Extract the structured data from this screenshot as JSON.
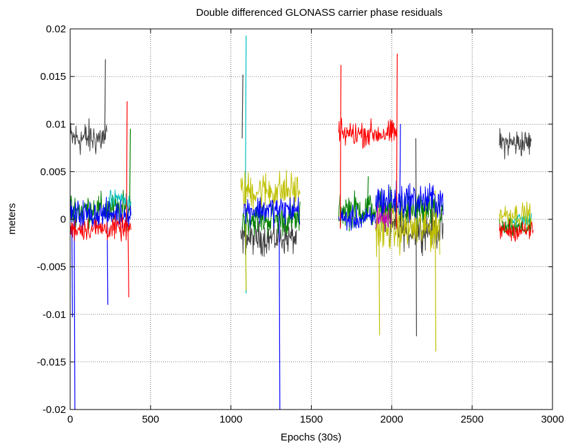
{
  "chart_data": {
    "type": "line",
    "title": "Double differenced GLONASS carrier phase residuals",
    "xlabel": "Epochs (30s)",
    "ylabel": "meters",
    "xlim": [
      0,
      3000
    ],
    "ylim": [
      -0.02,
      0.02
    ],
    "xticks": [
      0,
      500,
      1000,
      1500,
      2000,
      2500,
      3000
    ],
    "xtick_labels": [
      "0",
      "500",
      "1000",
      "1500",
      "2000",
      "2500",
      "3000"
    ],
    "yticks": [
      -0.02,
      -0.015,
      -0.01,
      -0.005,
      0,
      0.005,
      0.01,
      0.015,
      0.02
    ],
    "ytick_labels": [
      "-0.02",
      "-0.015",
      "-0.01",
      "-0.005",
      "0",
      "0.005",
      "0.01",
      "0.015",
      "0.02"
    ],
    "grid": true,
    "series": [
      {
        "color": "#404040",
        "segments": [
          {
            "x_start": 0,
            "x_end": 230,
            "mean": 0.0085,
            "spread": 0.0028
          },
          {
            "x_start": 1060,
            "x_end": 1410,
            "mean": -0.002,
            "spread": 0.0025
          },
          {
            "x_start": 1990,
            "x_end": 2320,
            "mean": -0.001,
            "spread": 0.003
          },
          {
            "x_start": 2670,
            "x_end": 2870,
            "mean": 0.008,
            "spread": 0.0022
          }
        ],
        "spikes": [
          [
            215,
            0.0168
          ],
          [
            1070,
            0.0152
          ],
          [
            2150,
            -0.0123
          ]
        ]
      },
      {
        "color": "#008000",
        "segments": [
          {
            "x_start": 0,
            "x_end": 380,
            "mean": 0.001,
            "spread": 0.0025
          },
          {
            "x_start": 1070,
            "x_end": 1430,
            "mean": 0.0,
            "spread": 0.0025
          },
          {
            "x_start": 1670,
            "x_end": 2320,
            "mean": 0.001,
            "spread": 0.0028
          },
          {
            "x_start": 2670,
            "x_end": 2870,
            "mean": -0.001,
            "spread": 0.0015
          }
        ],
        "spikes": [
          [
            370,
            0.0095
          ],
          [
            1850,
            0.0045
          ]
        ]
      },
      {
        "color": "#00bfbf",
        "segments": [
          {
            "x_start": 240,
            "x_end": 380,
            "mean": 0.002,
            "spread": 0.0015
          },
          {
            "x_start": 2750,
            "x_end": 2870,
            "mean": 0.0,
            "spread": 0.0012
          }
        ],
        "spikes": [
          [
            1090,
            0.0193
          ],
          [
            1090,
            -0.0078
          ]
        ]
      },
      {
        "color": "#bfbf00",
        "segments": [
          {
            "x_start": 1060,
            "x_end": 1430,
            "mean": 0.003,
            "spread": 0.003
          },
          {
            "x_start": 1900,
            "x_end": 2300,
            "mean": -0.001,
            "spread": 0.0035
          },
          {
            "x_start": 2670,
            "x_end": 2870,
            "mean": 0.0005,
            "spread": 0.0018
          }
        ],
        "spikes": [
          [
            1920,
            -0.0122
          ],
          [
            2270,
            -0.0139
          ],
          [
            1090,
            -0.0075
          ]
        ]
      },
      {
        "color": "#0000ff",
        "segments": [
          {
            "x_start": 0,
            "x_end": 380,
            "mean": 0.0005,
            "spread": 0.0022
          },
          {
            "x_start": 1080,
            "x_end": 1430,
            "mean": 0.001,
            "spread": 0.0022
          },
          {
            "x_start": 1670,
            "x_end": 1900,
            "mean": 0.0,
            "spread": 0.0018
          },
          {
            "x_start": 1900,
            "x_end": 2320,
            "mean": 0.002,
            "spread": 0.0028
          }
        ],
        "spikes": [
          [
            25,
            -0.02
          ],
          [
            10,
            -0.0103
          ],
          [
            1300,
            -0.02
          ],
          [
            2050,
            0.01
          ],
          [
            230,
            -0.009
          ]
        ]
      },
      {
        "color": "#bf00bf",
        "segments": [
          {
            "x_start": 1900,
            "x_end": 2000,
            "mean": 0.0,
            "spread": 0.002
          }
        ],
        "spikes": []
      },
      {
        "color": "#ff0000",
        "segments": [
          {
            "x_start": 0,
            "x_end": 380,
            "mean": -0.001,
            "spread": 0.0018
          },
          {
            "x_start": 1670,
            "x_end": 2030,
            "mean": 0.009,
            "spread": 0.002
          },
          {
            "x_start": 2670,
            "x_end": 2880,
            "mean": -0.0012,
            "spread": 0.0015
          }
        ],
        "spikes": [
          [
            2030,
            0.0174
          ],
          [
            1680,
            0.0162
          ],
          [
            350,
            0.0124
          ],
          [
            360,
            -0.0082
          ]
        ]
      }
    ]
  }
}
